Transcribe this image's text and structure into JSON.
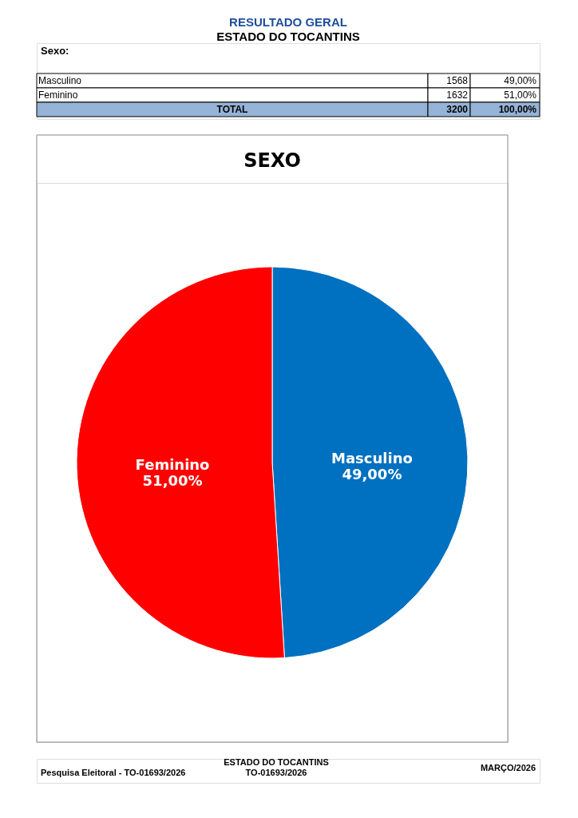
{
  "chart_data": [
    {
      "type": "other",
      "title": "RESULTADO GERAL",
      "subtitle": "ESTADO DO TOCANTINS",
      "annotations": [
        "Sexo:"
      ],
      "categories": [
        "Masculino",
        "Feminino",
        "TOTAL"
      ],
      "series": [
        {
          "values": [
            1568,
            1632,
            3200
          ],
          "colors": [
            "#ffffff",
            "#ffffff",
            "#95b3d7"
          ]
        },
        {
          "values": [
            49,
            51,
            100
          ],
          "value_labels": [
            "49,00%",
            "51,00%",
            "100,00%"
          ],
          "colors": [
            "#ffffff",
            "#ffffff",
            "#95b3d7"
          ]
        }
      ],
      "data_labels": true
    },
    {
      "type": "pie",
      "title": "SEXO",
      "categories": [
        "Masculino",
        "Feminino"
      ],
      "values": [
        49,
        51
      ],
      "colors": [
        "#0070c0",
        "#ff0000"
      ],
      "value_labels": [
        "49,00%",
        "51,00%"
      ],
      "annotations": [
        "Pesquisa Eleitoral - TO-01693/2026",
        "ESTADO DO TOCANTINS",
        "TO-01693/2026",
        "MARÇO/2026"
      ]
    }
  ]
}
